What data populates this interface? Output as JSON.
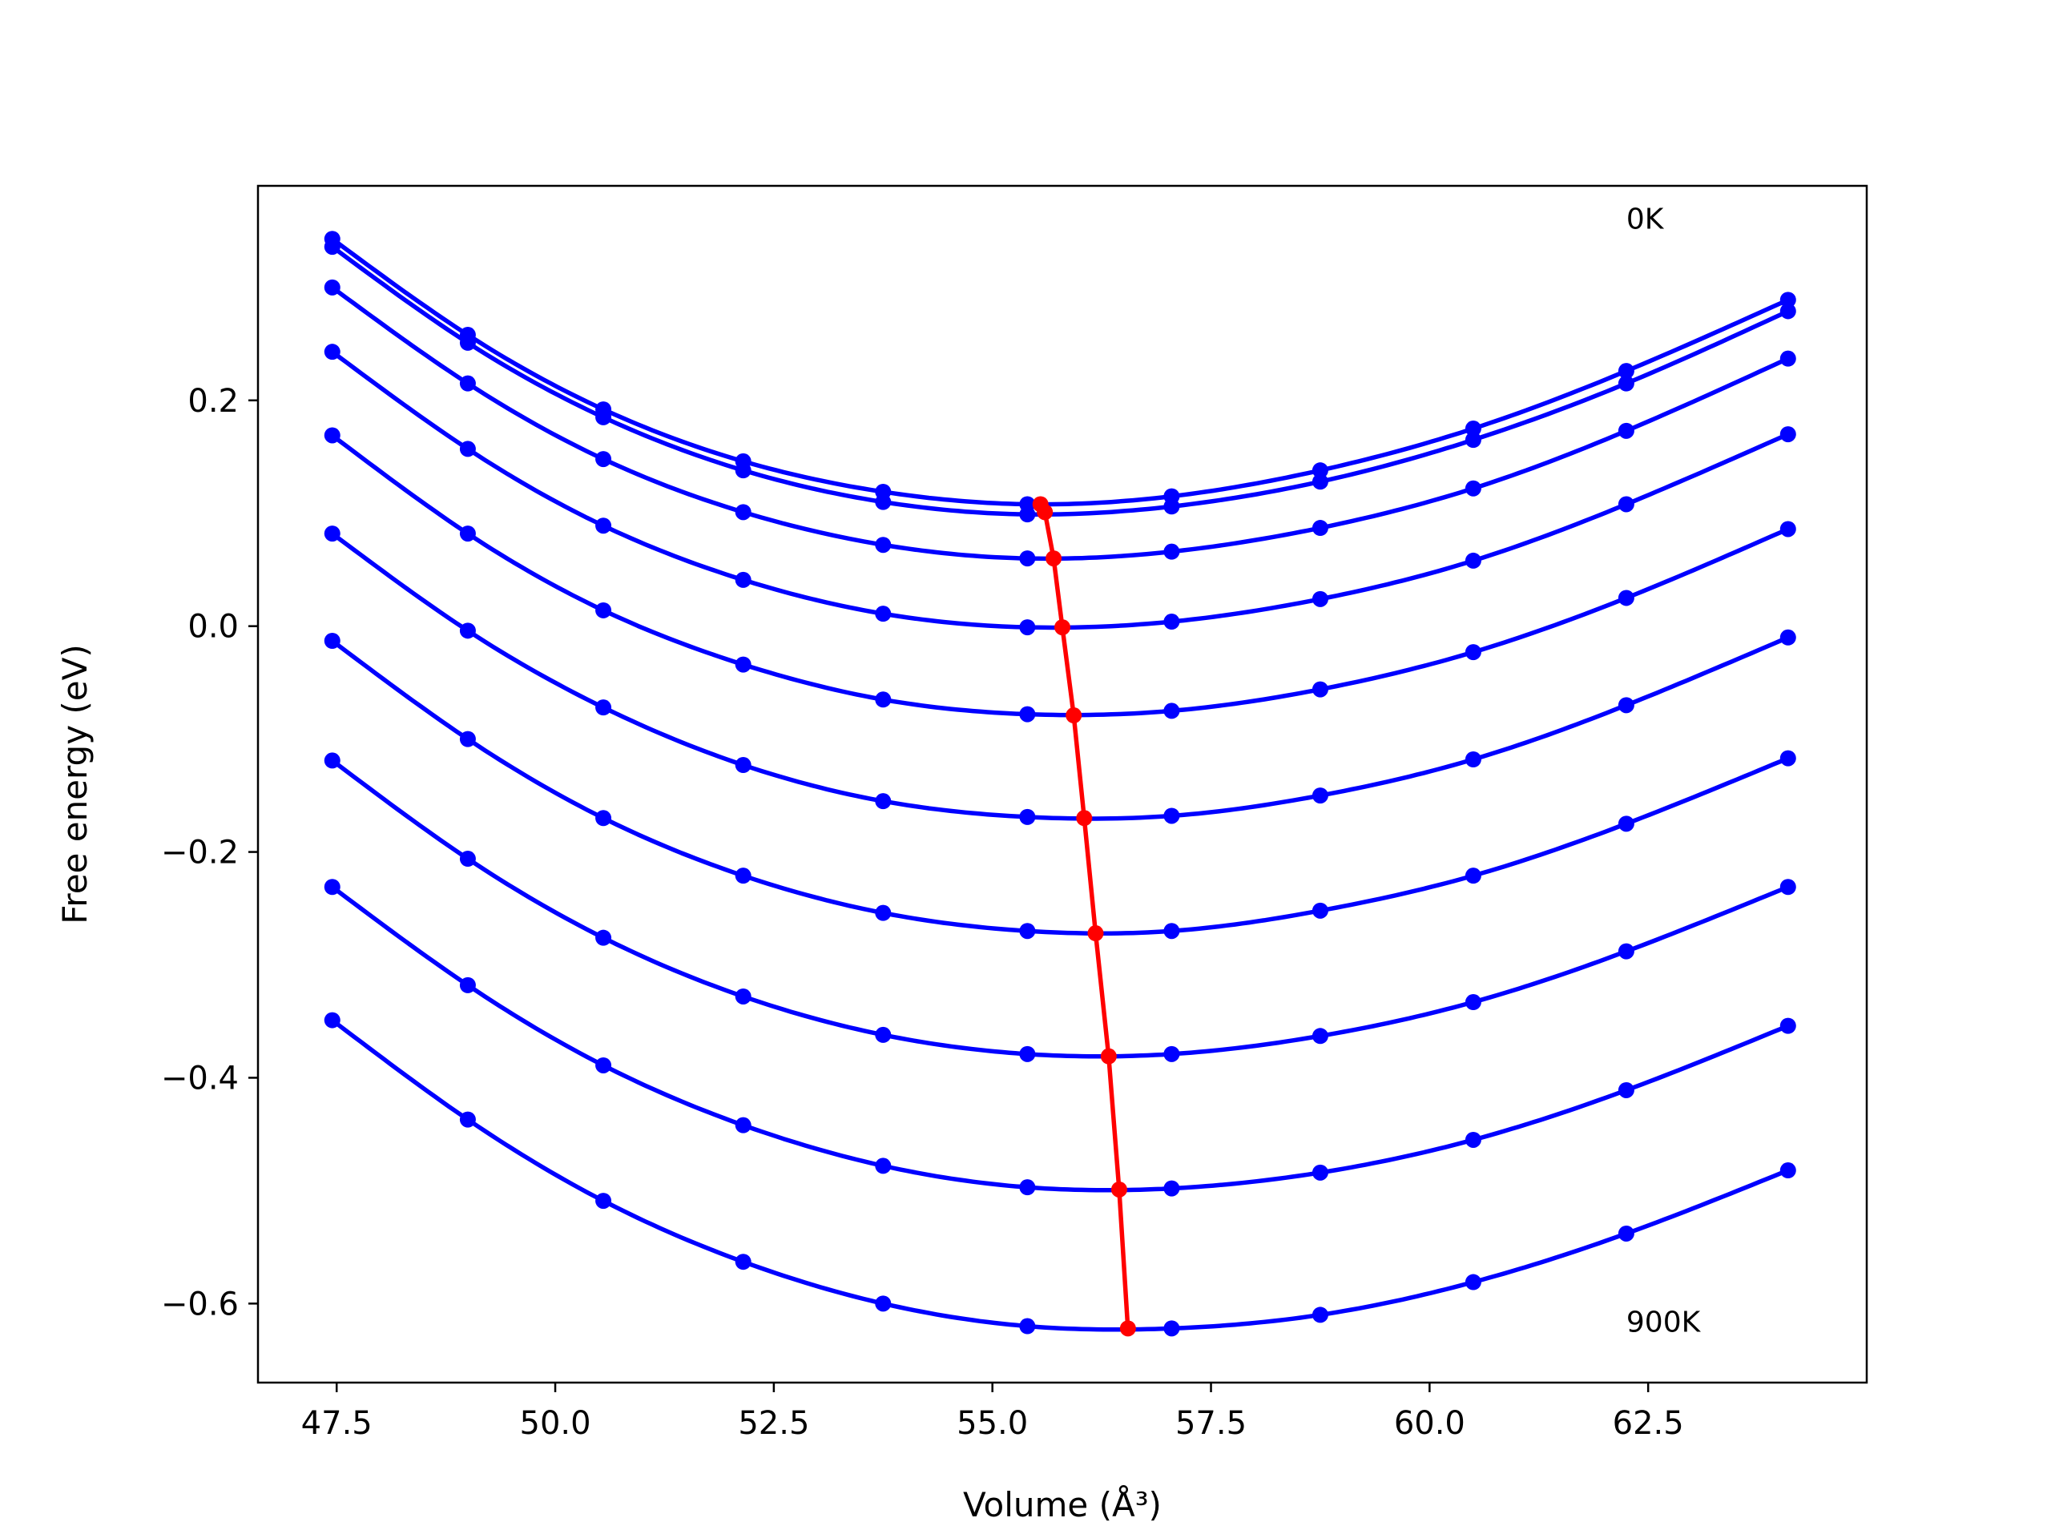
{
  "chart_data": {
    "type": "line",
    "title": "",
    "xlabel": "Volume (Å³)",
    "ylabel": "Free energy (eV)",
    "xlim": [
      46.6,
      65.0
    ],
    "ylim": [
      -0.67,
      0.39
    ],
    "xticks": [
      47.5,
      50.0,
      52.5,
      55.0,
      57.5,
      60.0,
      62.5
    ],
    "xtick_labels": [
      "47.5",
      "50.0",
      "52.5",
      "55.0",
      "57.5",
      "60.0",
      "62.5"
    ],
    "yticks": [
      0.2,
      0.0,
      -0.2,
      -0.4,
      -0.6
    ],
    "ytick_labels": [
      "0.2",
      "0.0",
      "−0.2",
      "−0.4",
      "−0.6"
    ],
    "grid": false,
    "x": [
      47.45,
      49.0,
      50.55,
      52.15,
      53.75,
      55.4,
      57.05,
      58.75,
      60.5,
      62.25,
      64.1
    ],
    "series": [
      {
        "color": "#0000ff",
        "values": [
          0.343,
          0.258,
          0.192,
          0.146,
          0.119,
          0.108,
          0.115,
          0.138,
          0.175,
          0.226,
          0.289
        ]
      },
      {
        "color": "#0000ff",
        "values": [
          0.336,
          0.251,
          0.185,
          0.138,
          0.11,
          0.099,
          0.106,
          0.128,
          0.165,
          0.215,
          0.279
        ]
      },
      {
        "color": "#0000ff",
        "values": [
          0.3,
          0.215,
          0.148,
          0.101,
          0.072,
          0.06,
          0.066,
          0.087,
          0.122,
          0.173,
          0.237
        ]
      },
      {
        "color": "#0000ff",
        "values": [
          0.243,
          0.157,
          0.089,
          0.041,
          0.011,
          -0.001,
          0.004,
          0.024,
          0.058,
          0.108,
          0.17
        ]
      },
      {
        "color": "#0000ff",
        "values": [
          0.169,
          0.082,
          0.014,
          -0.034,
          -0.065,
          -0.078,
          -0.075,
          -0.056,
          -0.023,
          0.025,
          0.086
        ]
      },
      {
        "color": "#0000ff",
        "values": [
          0.082,
          -0.004,
          -0.072,
          -0.123,
          -0.155,
          -0.169,
          -0.168,
          -0.15,
          -0.118,
          -0.07,
          -0.01
        ]
      },
      {
        "color": "#0000ff",
        "values": [
          -0.013,
          -0.1,
          -0.17,
          -0.221,
          -0.254,
          -0.27,
          -0.27,
          -0.252,
          -0.221,
          -0.175,
          -0.117
        ]
      },
      {
        "color": "#0000ff",
        "values": [
          -0.119,
          -0.206,
          -0.276,
          -0.328,
          -0.362,
          -0.379,
          -0.379,
          -0.363,
          -0.333,
          -0.288,
          -0.231
        ]
      },
      {
        "color": "#0000ff",
        "values": [
          -0.231,
          -0.318,
          -0.389,
          -0.442,
          -0.478,
          -0.497,
          -0.498,
          -0.484,
          -0.455,
          -0.411,
          -0.354
        ]
      },
      {
        "color": "#0000ff",
        "values": [
          -0.349,
          -0.437,
          -0.509,
          -0.563,
          -0.6,
          -0.62,
          -0.622,
          -0.61,
          -0.581,
          -0.538,
          -0.482
        ]
      }
    ],
    "minima": {
      "color": "#ff0000",
      "x": [
        55.55,
        55.6,
        55.7,
        55.8,
        55.93,
        56.05,
        56.18,
        56.33,
        56.45,
        56.55
      ],
      "y": [
        0.108,
        0.101,
        0.06,
        -0.001,
        -0.079,
        -0.17,
        -0.272,
        -0.381,
        -0.499,
        -0.622
      ]
    },
    "annotations": [
      {
        "text": "0K",
        "x": 62.25,
        "y": 0.352
      },
      {
        "text": "900K",
        "x": 62.25,
        "y": -0.625
      }
    ]
  }
}
